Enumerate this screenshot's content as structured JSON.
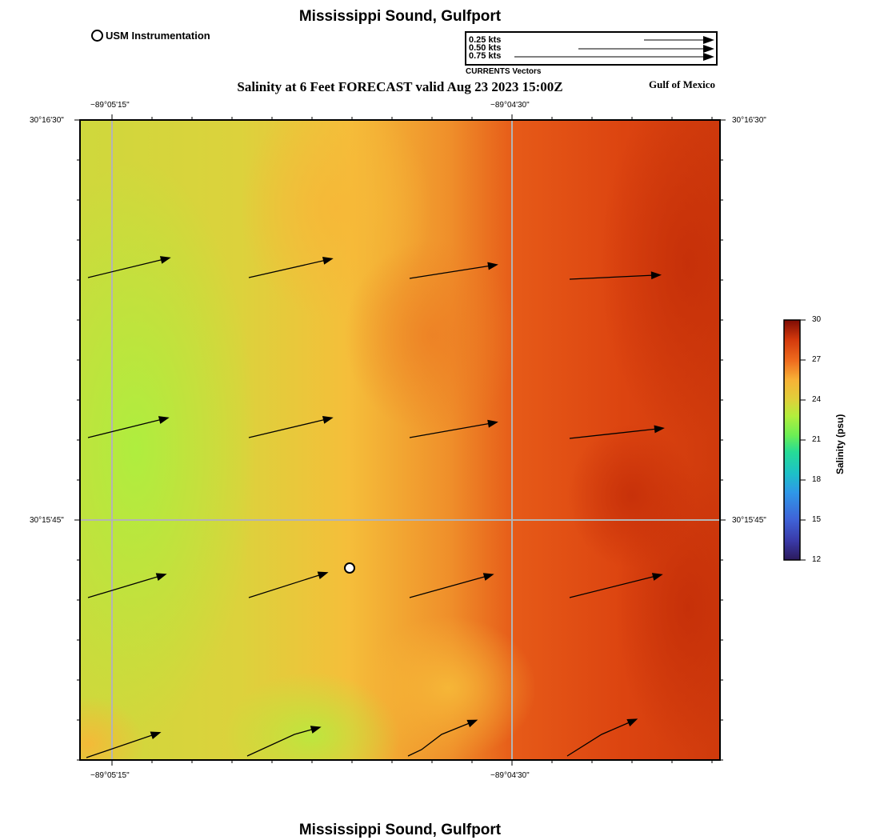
{
  "header": {
    "title": "Mississippi Sound, Gulfport",
    "plot_title": "Salinity at 6 Feet FORECAST valid Aug 23 2023 15:00Z",
    "region_label": "Gulf of Mexico",
    "footer_title": "Mississippi Sound, Gulfport"
  },
  "legend": {
    "station_label": "USM Instrumentation",
    "vector_scale": [
      "0.25 kts",
      "0.50 kts",
      "0.75 kts"
    ],
    "vector_caption": "CURRENTS Vectors"
  },
  "axes": {
    "lon_ticks": [
      "−89°05'15\"",
      "−89°04'30\""
    ],
    "lat_ticks": [
      "30°16'30\"",
      "30°15'45\""
    ]
  },
  "colorbar": {
    "title": "Salinity (psu)",
    "ticks": [
      "30",
      "27",
      "24",
      "21",
      "18",
      "15",
      "12"
    ],
    "range": [
      12,
      30
    ]
  },
  "colors": {
    "green": "#b3ec3e",
    "yellow": "#f6bf3a",
    "orange": "#ec7020",
    "red": "#dc4310",
    "darkred": "#c63008"
  }
}
